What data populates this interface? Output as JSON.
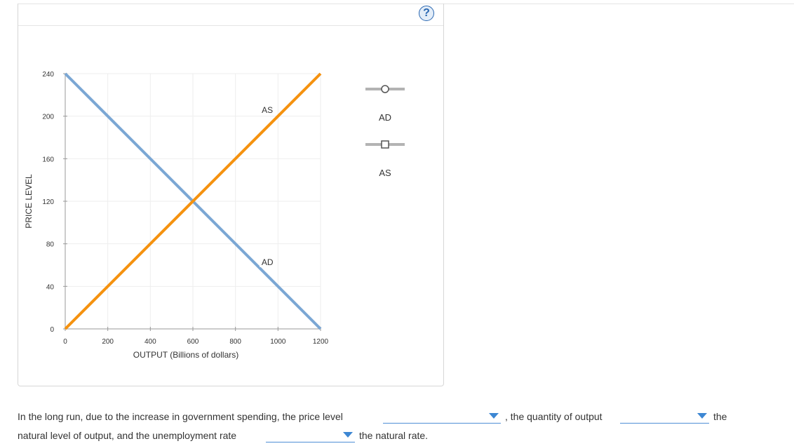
{
  "help_symbol": "?",
  "chart_data": {
    "type": "line",
    "title": "",
    "xlabel": "OUTPUT (Billions of dollars)",
    "ylabel": "PRICE LEVEL",
    "xlim": [
      0,
      1200
    ],
    "ylim": [
      0,
      240
    ],
    "x_ticks": [
      0,
      200,
      400,
      600,
      800,
      1000,
      1200
    ],
    "x_tick_labels": [
      "0",
      "200",
      "400",
      "600",
      "800",
      "1000",
      "1200"
    ],
    "y_ticks": [
      0,
      40,
      80,
      120,
      160,
      200,
      240
    ],
    "y_tick_labels": [
      "0",
      "40",
      "80",
      "120",
      "160",
      "200",
      "240"
    ],
    "grid": true,
    "series": [
      {
        "name": "AD",
        "color": "#7ba7d4",
        "x": [
          0,
          1200
        ],
        "y": [
          240,
          0
        ],
        "label_at": [
          950,
          62
        ]
      },
      {
        "name": "AS",
        "color": "#f5920f",
        "x": [
          0,
          1200
        ],
        "y": [
          0,
          240
        ],
        "label_at": [
          950,
          205
        ]
      }
    ]
  },
  "legend": {
    "items": [
      {
        "label": "AD",
        "marker": "circle",
        "line_color": "#b3b3b3",
        "icon": "circle-line-icon"
      },
      {
        "label": "AS",
        "marker": "square",
        "line_color": "#b3b3b3",
        "icon": "square-line-icon"
      }
    ]
  },
  "question": {
    "part1": "In the long run, due to the increase in government spending, the price level",
    "part2": ", the quantity of output",
    "part3": "the",
    "part4": "natural level of output, and the unemployment rate",
    "part5": "the natural rate.",
    "dropdown1_value": "",
    "dropdown2_value": "",
    "dropdown3_value": ""
  }
}
